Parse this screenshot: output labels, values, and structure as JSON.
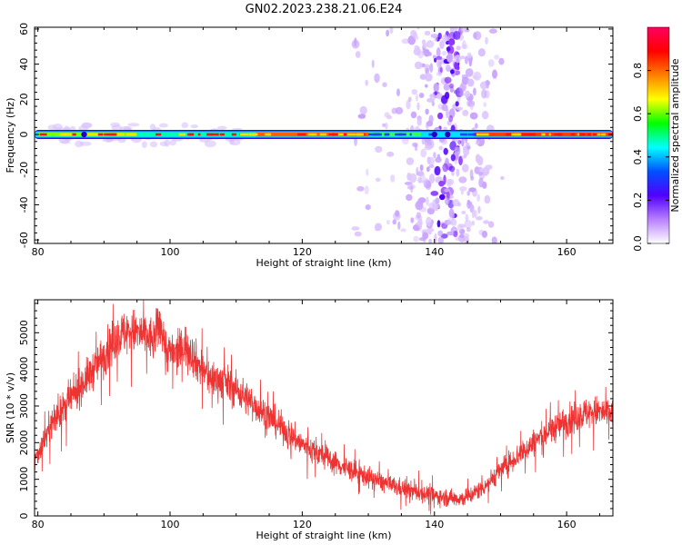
{
  "title": "GN02.2023.238.21.06.E24",
  "chart_data": [
    {
      "type": "heatmap",
      "name": "spectrogram",
      "xlabel": "Height of straight line (km)",
      "ylabel": "Frequency (Hz)",
      "xlim": [
        79.5,
        167
      ],
      "ylim": [
        -62,
        61
      ],
      "xticks": [
        80,
        100,
        120,
        140,
        160
      ],
      "yticks": [
        -60,
        -40,
        -20,
        0,
        20,
        40,
        60
      ],
      "colorbar": {
        "label": "Normalized spectral amplitude",
        "range": [
          0.0,
          1.0
        ],
        "ticks": [
          0.0,
          0.2,
          0.4,
          0.6,
          0.8
        ],
        "colormap": [
          "#ffffff",
          "#b880ff",
          "#5000ff",
          "#0050ff",
          "#00ffff",
          "#00ff00",
          "#ffff00",
          "#ff8000",
          "#ff0000",
          "#ff0060"
        ]
      },
      "features": {
        "carrier_line_frequency_hz": 0,
        "carrier_band_km": [
          79.5,
          167
        ],
        "scatter_band_km": [
          128,
          147
        ],
        "scatter_peak_km": 142
      },
      "grid": false
    },
    {
      "type": "line",
      "name": "snr",
      "xlabel": "Height of straight line (km)",
      "ylabel": "SNR (10 * v/v)",
      "xlim": [
        79.5,
        167
      ],
      "ylim": [
        0,
        5900
      ],
      "xticks": [
        80,
        100,
        120,
        140,
        160
      ],
      "yticks": [
        0,
        1000,
        2000,
        3000,
        4000,
        5000
      ],
      "color": "#ee3333",
      "series": [
        {
          "x": [
            79.5,
            82,
            85,
            88,
            90,
            92,
            94,
            96,
            97.5,
            98.5,
            99.5,
            101,
            102.5,
            104,
            106,
            108,
            110,
            112,
            115,
            118,
            120,
            123,
            126,
            130,
            134,
            138,
            141,
            143,
            144.5,
            146,
            148,
            150,
            153,
            156,
            159,
            162,
            164,
            167
          ],
          "y": [
            1500,
            2500,
            3200,
            3900,
            4400,
            4900,
            5050,
            4950,
            4800,
            5300,
            4500,
            4400,
            4700,
            4200,
            3750,
            3700,
            3450,
            3150,
            2700,
            2250,
            1950,
            1650,
            1350,
            1050,
            800,
            620,
            520,
            480,
            480,
            620,
            880,
            1250,
            1700,
            2150,
            2500,
            2750,
            2850,
            2800
          ]
        }
      ],
      "grid": false
    }
  ]
}
